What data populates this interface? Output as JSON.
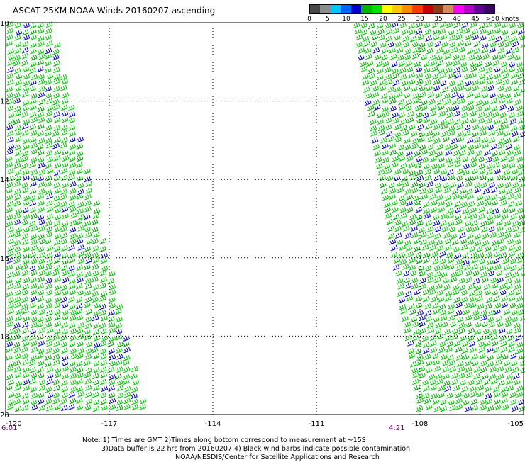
{
  "title": "ASCAT 25KM NOAA Winds 20160207 ascending",
  "legend": {
    "colors": [
      "#484848",
      "#8c8c8c",
      "#00c8ff",
      "#0064ff",
      "#0000c8",
      "#00b400",
      "#00e000",
      "#ffff00",
      "#ffc800",
      "#ff8c00",
      "#ff3c00",
      "#c80000",
      "#8c3c14",
      "#d28c5a",
      "#ff00ff",
      "#b400c8",
      "#640096",
      "#3c0064"
    ],
    "labels": [
      "0",
      "5",
      "10",
      "15",
      "20",
      "25",
      "30",
      "35",
      "40",
      "45",
      ">50 knots"
    ]
  },
  "axes": {
    "lat_labels": [
      "10",
      "12",
      "14",
      "16",
      "18",
      "20"
    ],
    "lon_labels": [
      "-120",
      "-117",
      "-114",
      "-111",
      "-108",
      "-105"
    ],
    "lat_range": [
      10,
      20
    ],
    "lon_range": [
      -120,
      -105
    ],
    "grid": true
  },
  "swaths": [
    {
      "name": "west",
      "time_label": "6:01"
    },
    {
      "name": "east",
      "time_label": "4:21"
    }
  ],
  "notes": [
    "Note: 1) Times are GMT 2)Times along bottom correspond to measurement at ~15S",
    "3)Data buffer is 22 hrs from 20160207 4) Black wind barbs indicate possible contamination",
    "NOAA/NESDIS/Center for Satellite Applications and Research"
  ]
}
